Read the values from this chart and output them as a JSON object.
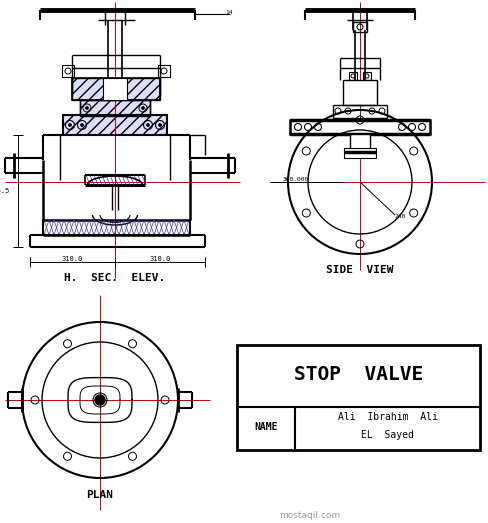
{
  "bg_color": "#ffffff",
  "line_color": "#000000",
  "red_line_color": "#cc0000",
  "blue_hatch": "#3333aa",
  "title": "STOP  VALVE",
  "name_label": "NAME",
  "name_value1": "Ali  Ibrahim  Ali",
  "name_value2": "EL  Sayed",
  "label_hsec": "H.  SEC.  ELEV.",
  "label_side": "SIDE  VIEW",
  "label_plan": "PLAN",
  "watermark": "mostaqil.com",
  "fig_w": 4.89,
  "fig_h": 5.23,
  "dpi": 100
}
